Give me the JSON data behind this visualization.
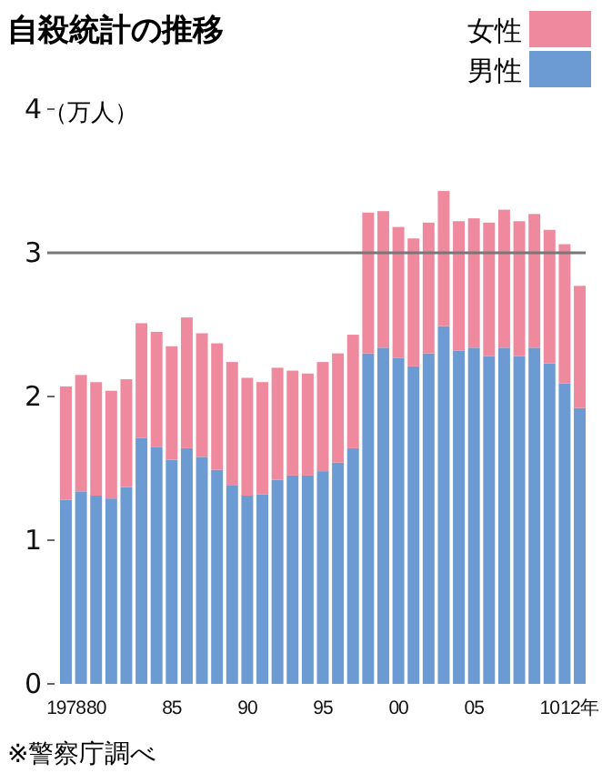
{
  "chart_data": {
    "type": "bar",
    "title": "自殺統計の推移",
    "ylabel": "（万人）",
    "stacked": true,
    "legend": "top right",
    "categories": [
      "1978",
      null,
      "80",
      null,
      null,
      null,
      null,
      "85",
      null,
      null,
      null,
      null,
      "90",
      null,
      null,
      null,
      null,
      "95",
      null,
      null,
      null,
      null,
      "00",
      null,
      null,
      null,
      null,
      "05",
      null,
      null,
      null,
      null,
      "10",
      null,
      "12年"
    ],
    "series": [
      {
        "name": "男性",
        "color": "#6b9bd2",
        "values": [
          1.28,
          1.34,
          1.31,
          1.29,
          1.37,
          1.71,
          1.65,
          1.56,
          1.64,
          1.58,
          1.49,
          1.38,
          1.31,
          1.32,
          1.42,
          1.45,
          1.45,
          1.48,
          1.54,
          1.64,
          2.3,
          2.34,
          2.27,
          2.21,
          2.3,
          2.49,
          2.32,
          2.34,
          2.28,
          2.34,
          2.28,
          2.34,
          2.23,
          2.09,
          1.92
        ]
      },
      {
        "name": "女性",
        "color": "#ef8a9e",
        "values": [
          0.79,
          0.81,
          0.79,
          0.75,
          0.75,
          0.8,
          0.8,
          0.79,
          0.91,
          0.86,
          0.88,
          0.86,
          0.82,
          0.78,
          0.78,
          0.73,
          0.71,
          0.76,
          0.76,
          0.79,
          0.98,
          0.95,
          0.91,
          0.89,
          0.91,
          0.94,
          0.9,
          0.9,
          0.93,
          0.96,
          0.94,
          0.93,
          0.93,
          0.97,
          0.85
        ]
      }
    ],
    "ylim": [
      0,
      4
    ],
    "yticks": [
      0,
      1,
      2,
      3,
      4
    ],
    "ref_lines": [
      {
        "axis": "y",
        "value": 3,
        "color": "#777777"
      }
    ],
    "annotations": [
      "※警察庁調べ"
    ]
  }
}
